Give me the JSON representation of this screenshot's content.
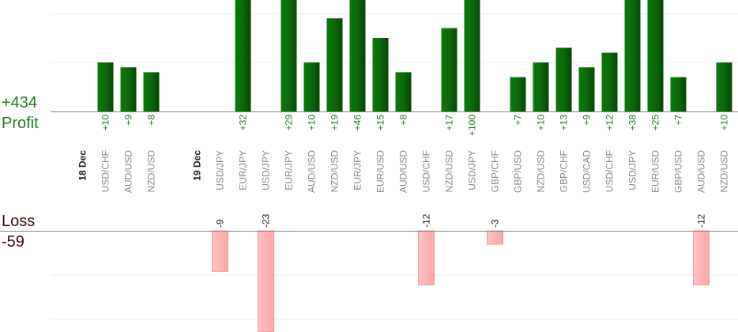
{
  "summary": {
    "profit_total": "+434",
    "profit_label": "Profit",
    "loss_label": "Loss",
    "loss_total": "-59"
  },
  "colors": {
    "profit_bar": "#0b6e0b",
    "loss_bar": "#ffb3b3",
    "profit_text": "#1f7a1f",
    "loss_text": "#3a0a0a",
    "axis_line": "#888888",
    "grid": "#eeeeee",
    "category_text": "#888888",
    "date_text": "#222222"
  },
  "chart_data": {
    "type": "bar",
    "grid": true,
    "categories": [
      {
        "label": "18 Dec",
        "is_date": true
      },
      {
        "label": "USD/CHF",
        "profit": 10
      },
      {
        "label": "AUD/USD",
        "profit": 9
      },
      {
        "label": "NZD/USD",
        "profit": 8
      },
      {
        "label": "",
        "spacer": true
      },
      {
        "label": "19 Dec",
        "is_date": true
      },
      {
        "label": "USD/JPY",
        "loss": -9
      },
      {
        "label": "EUR/JPY",
        "profit": 32
      },
      {
        "label": "USD/JPY",
        "loss": -23
      },
      {
        "label": "EUR/JPY",
        "profit": 29
      },
      {
        "label": "AUD/USD",
        "profit": 10
      },
      {
        "label": "NZD/USD",
        "profit": 19
      },
      {
        "label": "EUR/JPY",
        "profit": 46
      },
      {
        "label": "EUR/USD",
        "profit": 15
      },
      {
        "label": "AUD/USD",
        "profit": 8
      },
      {
        "label": "USD/CHF",
        "loss": -12
      },
      {
        "label": "NZD/USD",
        "profit": 17
      },
      {
        "label": "USD/JPY",
        "profit": 100
      },
      {
        "label": "GBP/CHF",
        "loss": -3
      },
      {
        "label": "GBP/USD",
        "profit": 7
      },
      {
        "label": "NZD/USD",
        "profit": 10
      },
      {
        "label": "GBP/CHF",
        "profit": 13
      },
      {
        "label": "USD/CAD",
        "profit": 9
      },
      {
        "label": "USD/CHF",
        "profit": 12
      },
      {
        "label": "USD/JPY",
        "profit": 38
      },
      {
        "label": "EUR/USD",
        "profit": 25
      },
      {
        "label": "GBP/USD",
        "profit": 7
      },
      {
        "label": "AUD/USD",
        "loss": -12
      },
      {
        "label": "NZD/USD",
        "profit": 10
      }
    ],
    "profit_axis_visible_range": [
      0,
      23
    ],
    "loss_axis_visible_range": [
      -20,
      0
    ]
  }
}
